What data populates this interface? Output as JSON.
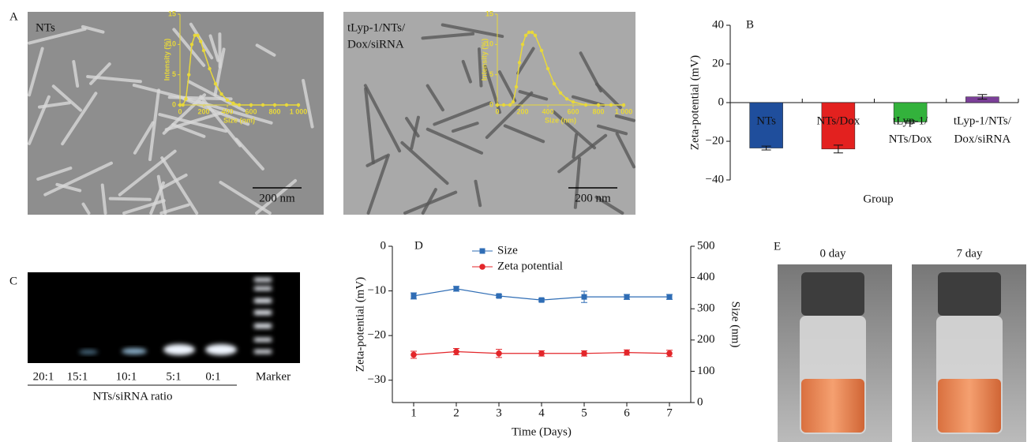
{
  "chart_data": [
    {
      "type": "line",
      "xlabel": "Size (nm)",
      "ylabel": "Intensity (%)",
      "color": "#e8d83a",
      "x": [
        0,
        25,
        50,
        75,
        100,
        125,
        150,
        175,
        200,
        250,
        300,
        350,
        400,
        450,
        500,
        600,
        700,
        800,
        900,
        1000
      ],
      "values": [
        0,
        0,
        1,
        5,
        10,
        11.5,
        11.5,
        10.5,
        9,
        6,
        3.5,
        1.8,
        0.8,
        0.3,
        0,
        0,
        0,
        0,
        0,
        0
      ],
      "xlim": [
        0,
        1000
      ],
      "ylim": [
        0,
        15
      ],
      "xticks": [
        0,
        200,
        400,
        600,
        800,
        {
          "value": 1000,
          "label": "1 000"
        }
      ],
      "yticks": [
        0,
        5,
        10,
        15
      ]
    },
    {
      "type": "line",
      "xlabel": "Size (nm)",
      "ylabel": "Intensity (%)",
      "color": "#e8d83a",
      "x": [
        0,
        50,
        100,
        125,
        150,
        175,
        200,
        225,
        250,
        275,
        300,
        350,
        400,
        450,
        500,
        550,
        600,
        700,
        800,
        900,
        1000
      ],
      "values": [
        0,
        0,
        0,
        0.5,
        3,
        7,
        10,
        11.5,
        12,
        12,
        11.5,
        9,
        6,
        3.5,
        2,
        1,
        0.5,
        0,
        0,
        0,
        0
      ],
      "xlim": [
        0,
        1000
      ],
      "ylim": [
        0,
        15
      ],
      "xticks": [
        0,
        200,
        400,
        600,
        800,
        {
          "value": 1000,
          "label": "1 000"
        }
      ],
      "yticks": [
        0,
        5,
        10,
        15
      ]
    },
    {
      "type": "bar",
      "panel": "B",
      "ylabel": "Zeta-potential (mV)",
      "xlabel": "Group",
      "categories": [
        [
          "NTs"
        ],
        [
          "NTs/Dox"
        ],
        [
          "tLyp-1/",
          "NTs/Dox"
        ],
        [
          "tLyp-1/NTs/",
          "Dox/siRNA"
        ]
      ],
      "values": [
        -23.5,
        -24,
        -10,
        3
      ],
      "errors": [
        1,
        2,
        0.6,
        1.2
      ],
      "colors": [
        "#1f4e9c",
        "#e3211f",
        "#33b23c",
        "#7b3f98"
      ],
      "ylim": [
        -40,
        40
      ],
      "yticks": [
        {
          "value": -40,
          "label": "−40"
        },
        {
          "value": -20,
          "label": "−20"
        },
        0,
        20,
        40
      ]
    },
    {
      "type": "dual_line",
      "panel": "D",
      "xlabel": "Time (Days)",
      "ylabel": "Zeta-potential (mV)",
      "y2label": "Size (nm)",
      "x": [
        1,
        2,
        3,
        4,
        5,
        6,
        7
      ],
      "xlim": [
        0.5,
        7.5
      ],
      "xticks": [
        1,
        2,
        3,
        4,
        5,
        6,
        7
      ],
      "ylim": [
        -35,
        0
      ],
      "yticks": [
        0,
        {
          "value": -10,
          "label": "−10"
        },
        {
          "value": -20,
          "label": "−20"
        },
        {
          "value": -30,
          "label": "−30"
        }
      ],
      "y2lim": [
        0,
        500
      ],
      "y2ticks": [
        0,
        100,
        200,
        300,
        400,
        500
      ],
      "series": [
        {
          "name": "Size",
          "color": "#2f6db5",
          "marker": "square",
          "axis": "y2",
          "values": [
            341,
            364,
            341,
            328,
            338,
            338,
            338
          ],
          "errors": [
            10,
            8,
            4,
            4,
            18,
            8,
            8
          ]
        },
        {
          "name": "Zeta potential",
          "color": "#e3262a",
          "marker": "circle",
          "values": [
            -24.3,
            -23.6,
            -24,
            -24,
            -24,
            -23.8,
            -24
          ],
          "errors": [
            0.8,
            0.7,
            0.9,
            0.6,
            0.6,
            0.6,
            0.7
          ]
        }
      ]
    }
  ],
  "figure": {
    "A": {
      "label": "A",
      "images": [
        {
          "caption": [
            "NTs"
          ],
          "scale_bar": "200 nm"
        },
        {
          "caption": [
            "tLyp-1/NTs/",
            "Dox/siRNA"
          ],
          "scale_bar": "200 nm"
        }
      ]
    },
    "C": {
      "label": "C",
      "lanes": [
        "20:1",
        "15:1",
        "10:1",
        "5:1",
        "0:1",
        "Marker"
      ],
      "xlabel": "NTs/siRNA ratio"
    },
    "E": {
      "label": "E",
      "captions": [
        "0 day",
        "7 day"
      ]
    }
  }
}
